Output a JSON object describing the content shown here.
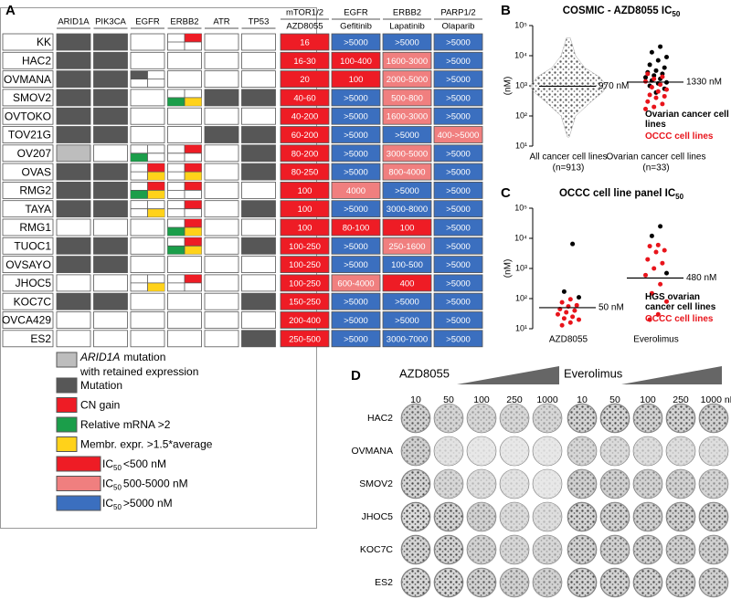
{
  "panel_a": {
    "label": "A",
    "genes": [
      "ARID1A",
      "PIK3CA",
      "EGFR",
      "ERBB2",
      "ATR",
      "TP53"
    ],
    "targets": [
      "mTOR1/2",
      "EGFR",
      "ERBB2",
      "PARP1/2"
    ],
    "drugs": [
      "AZD8055",
      "Gefitinib",
      "Lapatinib",
      "Olaparib"
    ],
    "rows": [
      {
        "cell": "KK",
        "ic50": [
          "16",
          ">5000",
          ">5000",
          ">5000"
        ]
      },
      {
        "cell": "HAC2",
        "ic50": [
          "16-30",
          "100-400",
          "1600-3000",
          ">5000"
        ]
      },
      {
        "cell": "OVMANA",
        "ic50": [
          "20",
          "100",
          "2000-5000",
          ">5000"
        ]
      },
      {
        "cell": "SMOV2",
        "ic50": [
          "40-60",
          ">5000",
          "500-800",
          ">5000"
        ]
      },
      {
        "cell": "OVTOKO",
        "ic50": [
          "40-200",
          ">5000",
          "1600-3000",
          ">5000"
        ]
      },
      {
        "cell": "TOV21G",
        "ic50": [
          "60-200",
          ">5000",
          ">5000",
          "400->5000"
        ]
      },
      {
        "cell": "OV207",
        "ic50": [
          "80-200",
          ">5000",
          "3000-5000",
          ">5000"
        ]
      },
      {
        "cell": "OVAS",
        "ic50": [
          "80-250",
          ">5000",
          "800-4000",
          ">5000"
        ]
      },
      {
        "cell": "RMG2",
        "ic50": [
          "100",
          "4000",
          ">5000",
          ">5000"
        ]
      },
      {
        "cell": "TAYA",
        "ic50": [
          "100",
          ">5000",
          "3000-8000",
          ">5000"
        ]
      },
      {
        "cell": "RMG1",
        "ic50": [
          "100",
          "80-100",
          "100",
          ">5000"
        ]
      },
      {
        "cell": "TUOC1",
        "ic50": [
          "100-250",
          ">5000",
          "250-1600",
          ">5000"
        ]
      },
      {
        "cell": "OVSAYO",
        "ic50": [
          "100-250",
          ">5000",
          "100-500",
          ">5000"
        ]
      },
      {
        "cell": "JHOC5",
        "ic50": [
          "100-250",
          "600-4000",
          "400",
          ">5000"
        ]
      },
      {
        "cell": "KOC7C",
        "ic50": [
          "150-250",
          ">5000",
          ">5000",
          ">5000"
        ]
      },
      {
        "cell": "OVCA429",
        "ic50": [
          "200-400",
          ">5000",
          ">5000",
          ">5000"
        ]
      },
      {
        "cell": "ES2",
        "ic50": [
          "250-500",
          ">5000",
          "3000-7000",
          ">5000"
        ]
      }
    ],
    "legend": {
      "retained": {
        "italic": "ARID1A",
        "line1": "mutation",
        "line2": "with retained expression"
      },
      "items": [
        "Mutation",
        "CN gain",
        "Relative mRNA >2",
        "Membr. expr. >1.5*average"
      ],
      "ic50": [
        {
          "prefix": "IC",
          "sub": "50",
          "text": "<500 nM"
        },
        {
          "prefix": "IC",
          "sub": "50",
          "text": "500-5000 nM"
        },
        {
          "prefix": "IC",
          "sub": "50",
          "text": ">5000 nM"
        }
      ]
    }
  },
  "chart_data": [
    {
      "type": "scatter",
      "panel_label": "B",
      "title": "COSMIC - AZD8055 IC",
      "title_subscript": "50",
      "ylabel": "(nM)",
      "log_y": true,
      "categories": [
        "All cancer cell lines",
        "Ovarian cancer cell lines"
      ],
      "category_notes": [
        "(n=913)",
        "(n=33)"
      ],
      "ylim": [
        10,
        100000
      ],
      "yticks": [
        {
          "value": 10,
          "label": "10¹"
        },
        {
          "value": 100,
          "label": "10²"
        },
        {
          "value": 1000,
          "label": "10³"
        },
        {
          "value": 10000,
          "label": "10⁴"
        },
        {
          "value": 100000,
          "label": "10⁵"
        }
      ],
      "medians": [
        970,
        1330
      ],
      "median_labels": [
        "970 nM",
        "1330 nM"
      ],
      "series": [
        {
          "name": "Ovarian cancer cell lines",
          "color": "#000000",
          "x": [
            "Ovarian cancer cell lines",
            "Ovarian cancer cell lines",
            "Ovarian cancer cell lines",
            "Ovarian cancer cell lines",
            "Ovarian cancer cell lines",
            "Ovarian cancer cell lines",
            "Ovarian cancer cell lines",
            "Ovarian cancer cell lines",
            "Ovarian cancer cell lines",
            "Ovarian cancer cell lines",
            "Ovarian cancer cell lines",
            "Ovarian cancer cell lines",
            "Ovarian cancer cell lines",
            "Ovarian cancer cell lines",
            "Ovarian cancer cell lines",
            "Ovarian cancer cell lines",
            "Ovarian cancer cell lines",
            "Ovarian cancer cell lines"
          ],
          "values": [
            20000,
            13000,
            9000,
            7000,
            5000,
            4000,
            3200,
            2800,
            2500,
            2200,
            1900,
            1700,
            1500,
            1300,
            1200,
            1000,
            800,
            600
          ]
        },
        {
          "name": "OCCC cell lines",
          "color": "#e8141b",
          "x": [
            "Ovarian cancer cell lines",
            "Ovarian cancer cell lines",
            "Ovarian cancer cell lines",
            "Ovarian cancer cell lines",
            "Ovarian cancer cell lines",
            "Ovarian cancer cell lines",
            "Ovarian cancer cell lines",
            "Ovarian cancer cell lines",
            "Ovarian cancer cell lines",
            "Ovarian cancer cell lines",
            "Ovarian cancer cell lines",
            "Ovarian cancer cell lines",
            "Ovarian cancer cell lines",
            "Ovarian cancer cell lines",
            "Ovarian cancer cell lines"
          ],
          "values": [
            2500,
            2000,
            1700,
            1400,
            1100,
            900,
            750,
            650,
            500,
            450,
            400,
            300,
            250,
            200,
            170
          ]
        }
      ]
    },
    {
      "type": "scatter",
      "panel_label": "C",
      "title": "OCCC cell line panel IC",
      "title_subscript": "50",
      "ylabel": "(nM)",
      "log_y": true,
      "categories": [
        "AZD8055",
        "Everolimus"
      ],
      "ylim": [
        10,
        100000
      ],
      "yticks": [
        {
          "value": 10,
          "label": "10¹"
        },
        {
          "value": 100,
          "label": "10²"
        },
        {
          "value": 1000,
          "label": "10³"
        },
        {
          "value": 10000,
          "label": "10⁴"
        },
        {
          "value": 100000,
          "label": "10⁵"
        }
      ],
      "medians": [
        50,
        480
      ],
      "median_labels": [
        "50 nM",
        "480 nM"
      ],
      "series": [
        {
          "name": "HGS ovarian cancer cell lines",
          "color": "#000000",
          "x": [
            "AZD8055",
            "AZD8055",
            "AZD8055",
            "Everolimus",
            "Everolimus",
            "Everolimus"
          ],
          "values": [
            6500,
            170,
            110,
            25000,
            12000,
            700
          ]
        },
        {
          "name": "OCCC cell lines",
          "color": "#e8141b",
          "x": [
            "AZD8055",
            "AZD8055",
            "AZD8055",
            "AZD8055",
            "AZD8055",
            "AZD8055",
            "AZD8055",
            "AZD8055",
            "AZD8055",
            "AZD8055",
            "AZD8055",
            "AZD8055",
            "AZD8055",
            "Everolimus",
            "Everolimus",
            "Everolimus",
            "Everolimus",
            "Everolimus",
            "Everolimus",
            "Everolimus",
            "Everolimus",
            "Everolimus",
            "Everolimus",
            "Everolimus",
            "Everolimus",
            "Everolimus"
          ],
          "values": [
            95,
            75,
            60,
            55,
            45,
            40,
            35,
            30,
            25,
            22,
            20,
            16,
            13,
            6000,
            5500,
            4000,
            3500,
            2000,
            1500,
            1000,
            600,
            300,
            150,
            80,
            30,
            20
          ]
        }
      ]
    }
  ],
  "panel_d": {
    "label": "D",
    "drugs": [
      {
        "name": "AZD8055",
        "concentrations": [
          "10",
          "50",
          "100",
          "250",
          "1000"
        ]
      },
      {
        "name": "Everolimus",
        "concentrations": [
          "10",
          "50",
          "100",
          "250",
          "1000 nM"
        ]
      }
    ],
    "rows": [
      "HAC2",
      "OVMANA",
      "SMOV2",
      "JHOC5",
      "KOC7C",
      "ES2"
    ]
  }
}
